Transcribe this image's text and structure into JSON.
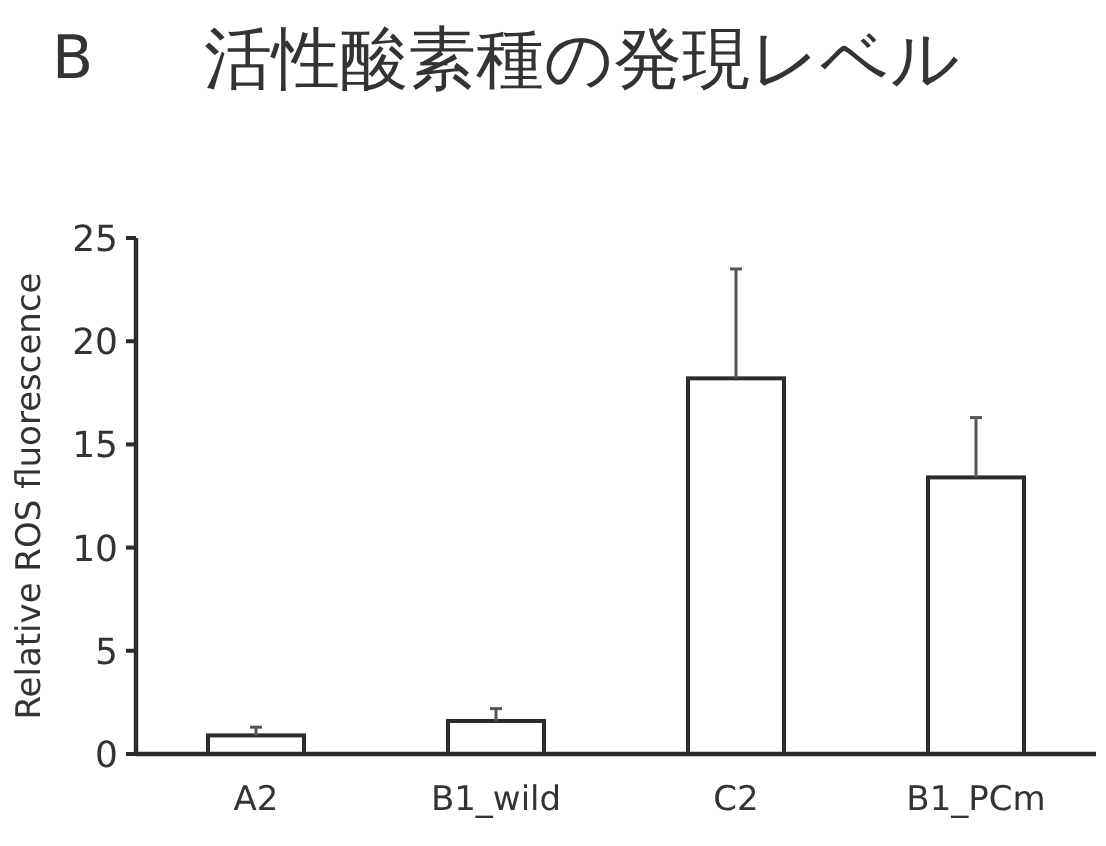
{
  "chart_data": {
    "type": "bar",
    "title": "活性酸素種の発現レベル",
    "annotations": [
      "B"
    ],
    "ylabel": "Relative ROS fluorescence",
    "categories": [
      "A2",
      "B1_wild",
      "C2",
      "B1_PCm"
    ],
    "values": [
      0.9,
      1.6,
      18.2,
      13.4
    ],
    "errors": [
      [
        0.9,
        1.3
      ],
      [
        1.6,
        2.2
      ],
      [
        18.2,
        23.5
      ],
      [
        13.4,
        16.3
      ]
    ],
    "color": "#ffffff",
    "ylim": [
      0,
      25
    ],
    "yticks": [
      0,
      5,
      10,
      15,
      20,
      25
    ],
    "grid": false
  }
}
